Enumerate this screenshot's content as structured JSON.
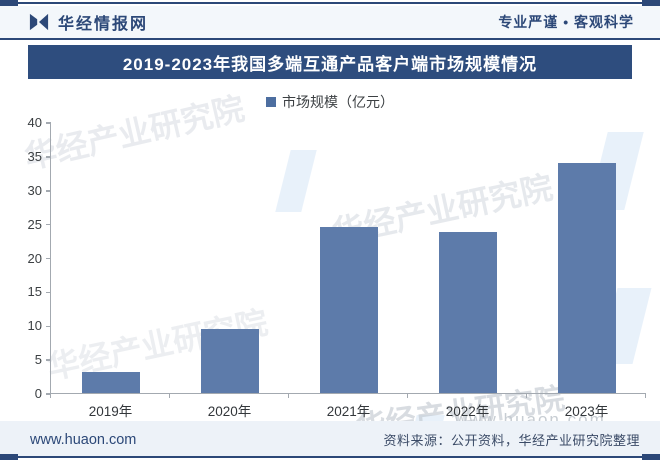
{
  "colors": {
    "navy": "#2C4878",
    "title_bar": "#2E4D7E",
    "bar_fill": "#5D7BAA",
    "legend_swatch": "#4D6EA0",
    "header_bg": "#F3F7FB",
    "footer_bg": "#EDF2F8",
    "axis": "#A3A9B0",
    "text": "#3C4043"
  },
  "header": {
    "brand": "华经情报网",
    "slogan": "专业严谨 • 客观科学"
  },
  "title": "2019-2023年我国多端互通产品客户端市场规模情况",
  "legend": {
    "label": "市场规模（亿元）"
  },
  "chart_data": {
    "type": "bar",
    "title": "2019-2023年我国多端互通产品客户端市场规模情况",
    "categories": [
      "2019年",
      "2020年",
      "2021年",
      "2022年",
      "2023年"
    ],
    "values": [
      3.1,
      9.5,
      24.5,
      23.8,
      33.9
    ],
    "series_name": "市场规模（亿元）",
    "xlabel": "",
    "ylabel": "",
    "ylim": [
      0,
      40
    ],
    "yticks": [
      0,
      5,
      10,
      15,
      20,
      25,
      30,
      35,
      40
    ],
    "grid": false,
    "legend_position": "top-center"
  },
  "watermarks": {
    "brand_diagonal": "华经产业研究院",
    "site": "www.huaon.com"
  },
  "footer": {
    "site": "www.huaon.com",
    "source": "资料来源：公开资料，华经产业研究院整理"
  }
}
